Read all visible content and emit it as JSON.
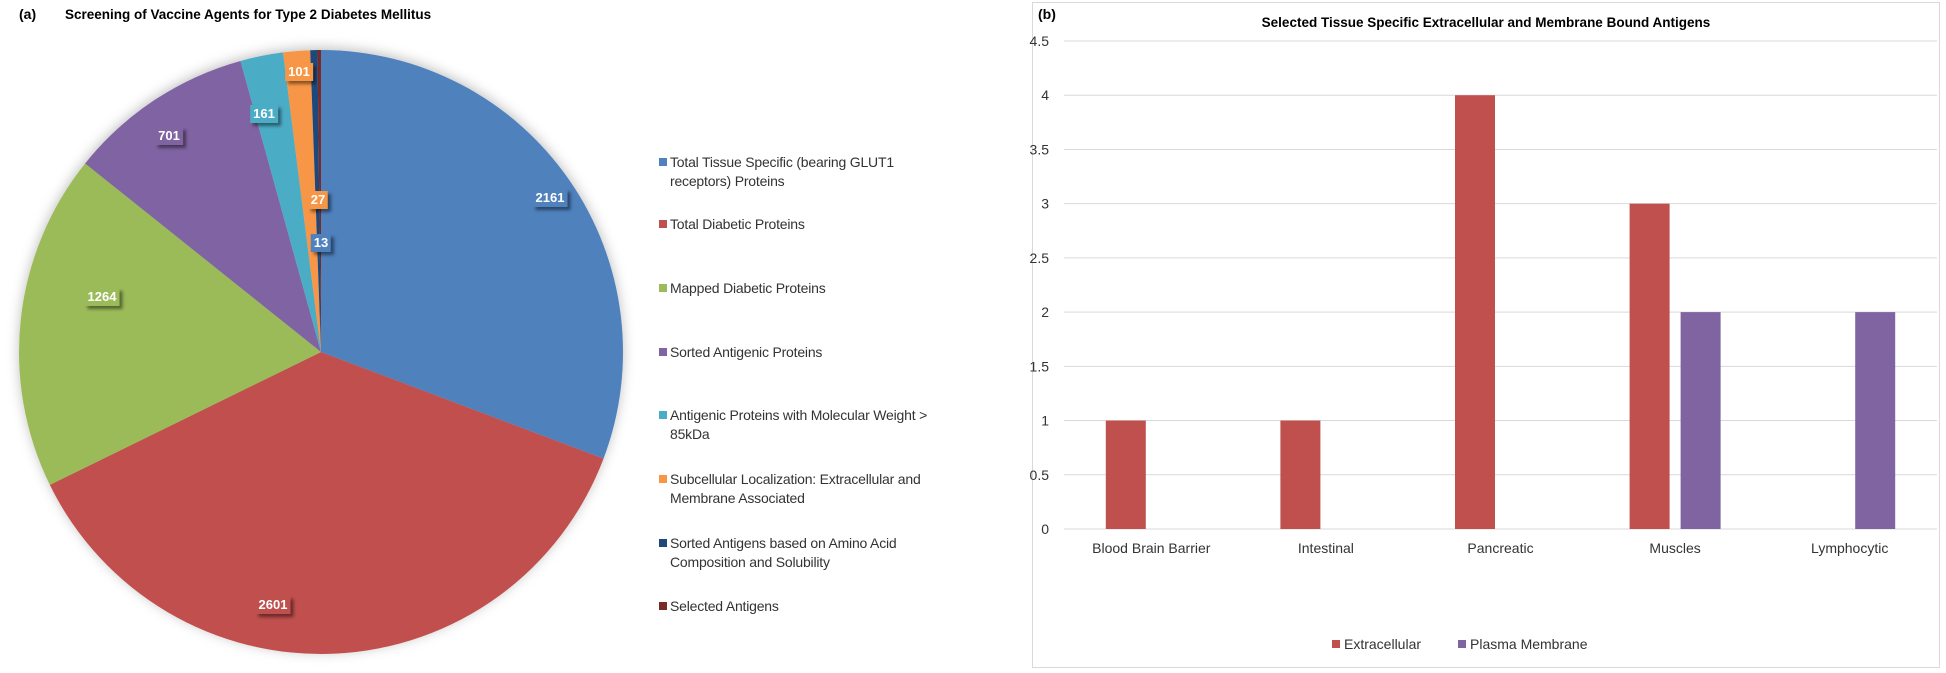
{
  "panel_a": {
    "tag": "(a)"
  },
  "panel_b": {
    "tag": "(b)"
  },
  "chart_data": [
    {
      "type": "pie",
      "title": "Screening of Vaccine Agents for Type 2 Diabetes Mellitus",
      "legend_position": "right",
      "slices": [
        {
          "label": "Total Tissue Specific (bearing GLUT1 receptors) Proteins",
          "value": 2161,
          "data_label": "2161",
          "color": "#4F81BD"
        },
        {
          "label": "Total Diabetic Proteins",
          "value": 2601,
          "data_label": "2601",
          "color": "#C0504D"
        },
        {
          "label": "Mapped Diabetic Proteins",
          "value": 1264,
          "data_label": "1264",
          "color": "#9BBB59"
        },
        {
          "label": "Sorted Antigenic Proteins",
          "value": 701,
          "data_label": "701",
          "color": "#8064A2"
        },
        {
          "label": "Antigenic Proteins with Molecular Weight > 85kDa",
          "value": 161,
          "data_label": "161",
          "color": "#4BACC6"
        },
        {
          "label": "Subcellular Localization: Extracellular and Membrane Associated",
          "value": 101,
          "data_label": "101",
          "color": "#F79646"
        },
        {
          "label": "Sorted Antigens based on Amino Acid Composition and Solubility",
          "value": 27,
          "data_label": "27",
          "color": "#1F497D"
        },
        {
          "label": "Selected Antigens",
          "value": 13,
          "data_label": "13",
          "color": "#772C2A"
        }
      ]
    },
    {
      "type": "bar",
      "title": "Selected Tissue Specific Extracellular and Membrane Bound Antigens",
      "categories": [
        "Blood Brain Barrier",
        "Intestinal",
        "Pancreatic",
        "Muscles",
        "Lymphocytic"
      ],
      "series": [
        {
          "name": "Extracellular",
          "values": [
            1,
            1,
            4,
            3,
            0
          ],
          "color": "#C0504D"
        },
        {
          "name": "Plasma Membrane",
          "values": [
            0,
            0,
            0,
            2,
            2
          ],
          "color": "#8064A2"
        }
      ],
      "ylim": [
        0,
        4.5
      ],
      "yticks": [
        "0",
        "0.5",
        "1",
        "1.5",
        "2",
        "2.5",
        "3",
        "3.5",
        "4",
        "4.5"
      ],
      "grid": true,
      "legend_position": "bottom"
    }
  ]
}
